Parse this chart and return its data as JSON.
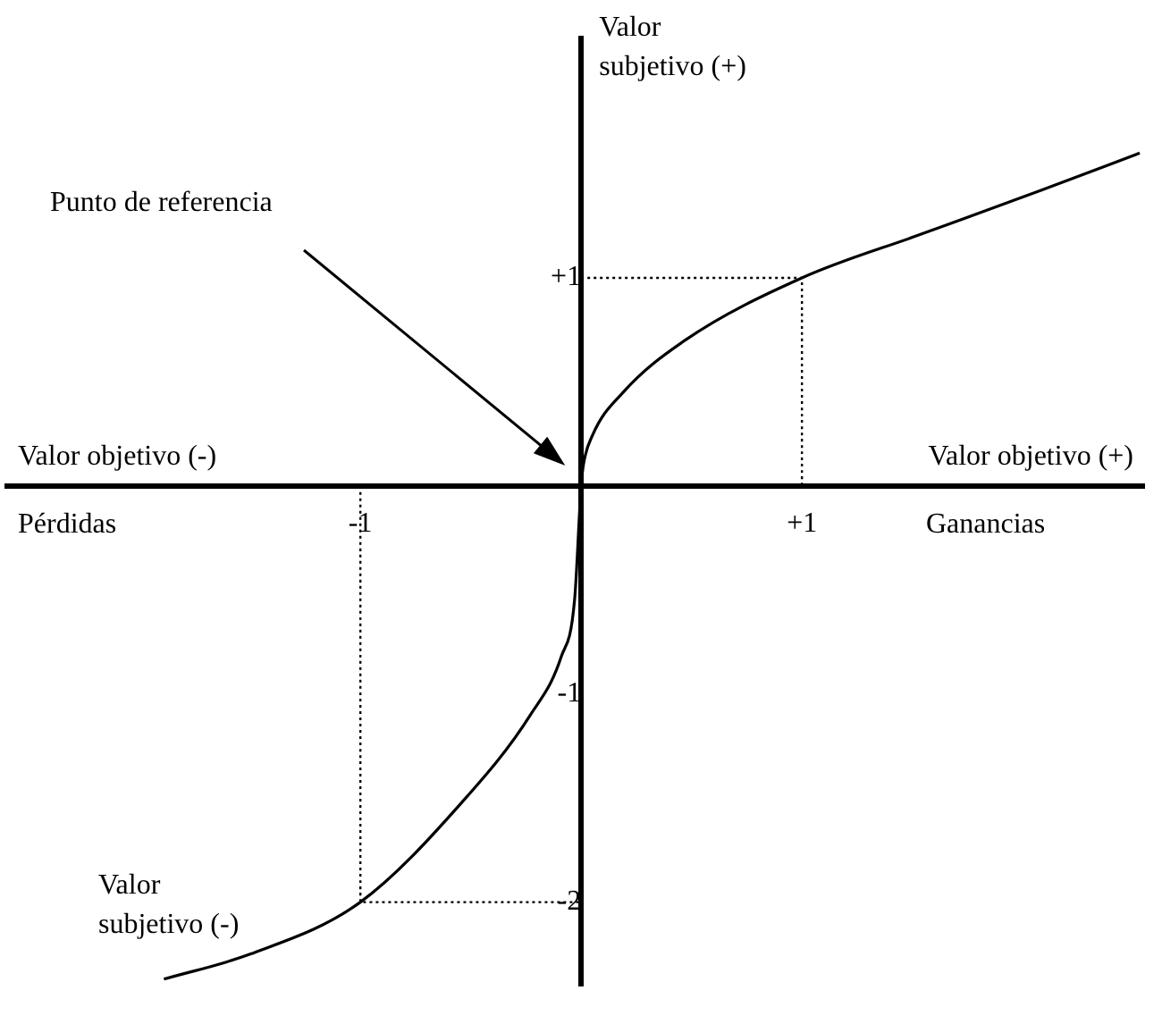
{
  "chart_data": {
    "type": "line",
    "xlabel": "Valor objetivo (+)",
    "ylabel": "Valor subjetivo (+)",
    "annotations": [
      "Valor objetivo (-)",
      "Pérdidas",
      "Ganancias",
      "Valor subjetivo (-)",
      "Punto de referencia"
    ],
    "xlim": [
      -2.6,
      2.55
    ],
    "ylim": [
      -2.4,
      2.15
    ],
    "xticks": [
      -1,
      {
        "value": 1,
        "label": "+1"
      }
    ],
    "yticks": [
      {
        "value": 1,
        "label": "+1"
      },
      -1,
      -2
    ],
    "marker": "none",
    "grid": false,
    "legend": false,
    "series": [
      {
        "color": "#000000",
        "line_style": "solid",
        "x": [
          -1.89,
          -1.5,
          -1,
          -0.54,
          -0.23,
          -0.09,
          -0.03,
          0,
          0.01,
          0.05,
          0.19,
          0.47,
          1,
          1.54,
          2.08,
          2.53
        ],
        "values": [
          -2.37,
          -2.25,
          -2,
          -1.52,
          -1.1,
          -0.82,
          -0.55,
          0,
          0.1,
          0.24,
          0.45,
          0.7,
          1,
          1.21,
          1.42,
          1.6
        ]
      },
      {
        "color": "#000000",
        "line_style": "dotted",
        "x": [
          0,
          1,
          1
        ],
        "values": [
          1,
          1,
          0
        ]
      },
      {
        "color": "#000000",
        "line_style": "dotted",
        "x": [
          -1,
          -1,
          0
        ],
        "values": [
          0,
          -2,
          -2
        ]
      }
    ]
  }
}
